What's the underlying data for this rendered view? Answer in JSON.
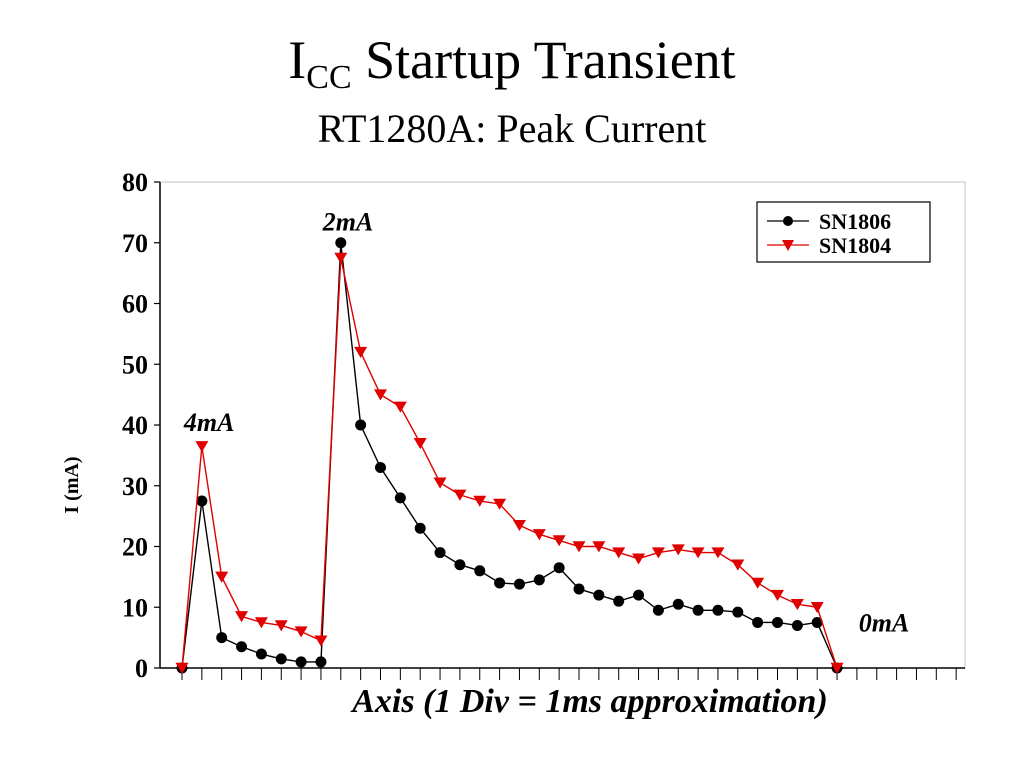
{
  "header": {
    "title_main": "I",
    "title_sub": "CC",
    "title_rest": " Startup Transient",
    "subtitle": "RT1280A: Peak Current"
  },
  "chart_data": {
    "type": "line",
    "title": "ICC Startup Transient",
    "subtitle": "RT1280A: Peak Current",
    "xlabel": "Axis (1 Div = 1ms approximation)",
    "ylabel": "I (mA)",
    "ylim": [
      0,
      80
    ],
    "yticks": [
      0,
      10,
      20,
      30,
      40,
      50,
      60,
      70,
      80
    ],
    "xlim": [
      0,
      39
    ],
    "x": [
      0,
      1,
      2,
      3,
      4,
      5,
      6,
      7,
      8,
      9,
      10,
      11,
      12,
      13,
      14,
      15,
      16,
      17,
      18,
      19,
      20,
      21,
      22,
      23,
      24,
      25,
      26,
      27,
      28,
      29,
      30,
      31,
      32,
      33
    ],
    "grid": false,
    "legend_position": "top-right",
    "series": [
      {
        "name": "SN1806",
        "color": "#000000",
        "marker": "circle",
        "values": [
          0,
          27.5,
          5,
          3.5,
          2.3,
          1.5,
          1,
          1,
          70,
          40,
          33,
          28,
          23,
          19,
          17,
          16,
          14,
          13.8,
          14.5,
          16.5,
          13,
          12,
          11,
          12,
          9.5,
          10.5,
          9.5,
          9.5,
          9.2,
          7.5,
          7.5,
          7,
          7.5,
          0
        ]
      },
      {
        "name": "SN1804",
        "color": "#e00000",
        "marker": "triangle-down",
        "values": [
          0,
          36.5,
          15,
          8.5,
          7.5,
          7,
          6,
          4.5,
          67.5,
          52,
          45,
          43,
          37,
          30.5,
          28.5,
          27.5,
          27,
          23.5,
          22,
          21,
          20,
          20,
          19,
          18,
          19,
          19.5,
          19,
          19,
          17,
          14,
          12,
          10.5,
          10,
          0
        ]
      }
    ],
    "annotations": [
      {
        "text": "4mA",
        "x": 1,
        "y": 40.5
      },
      {
        "text": "2mA",
        "x": 8,
        "y": 73.5
      },
      {
        "text": "0mA",
        "x": 35,
        "y": 7.5
      }
    ]
  }
}
